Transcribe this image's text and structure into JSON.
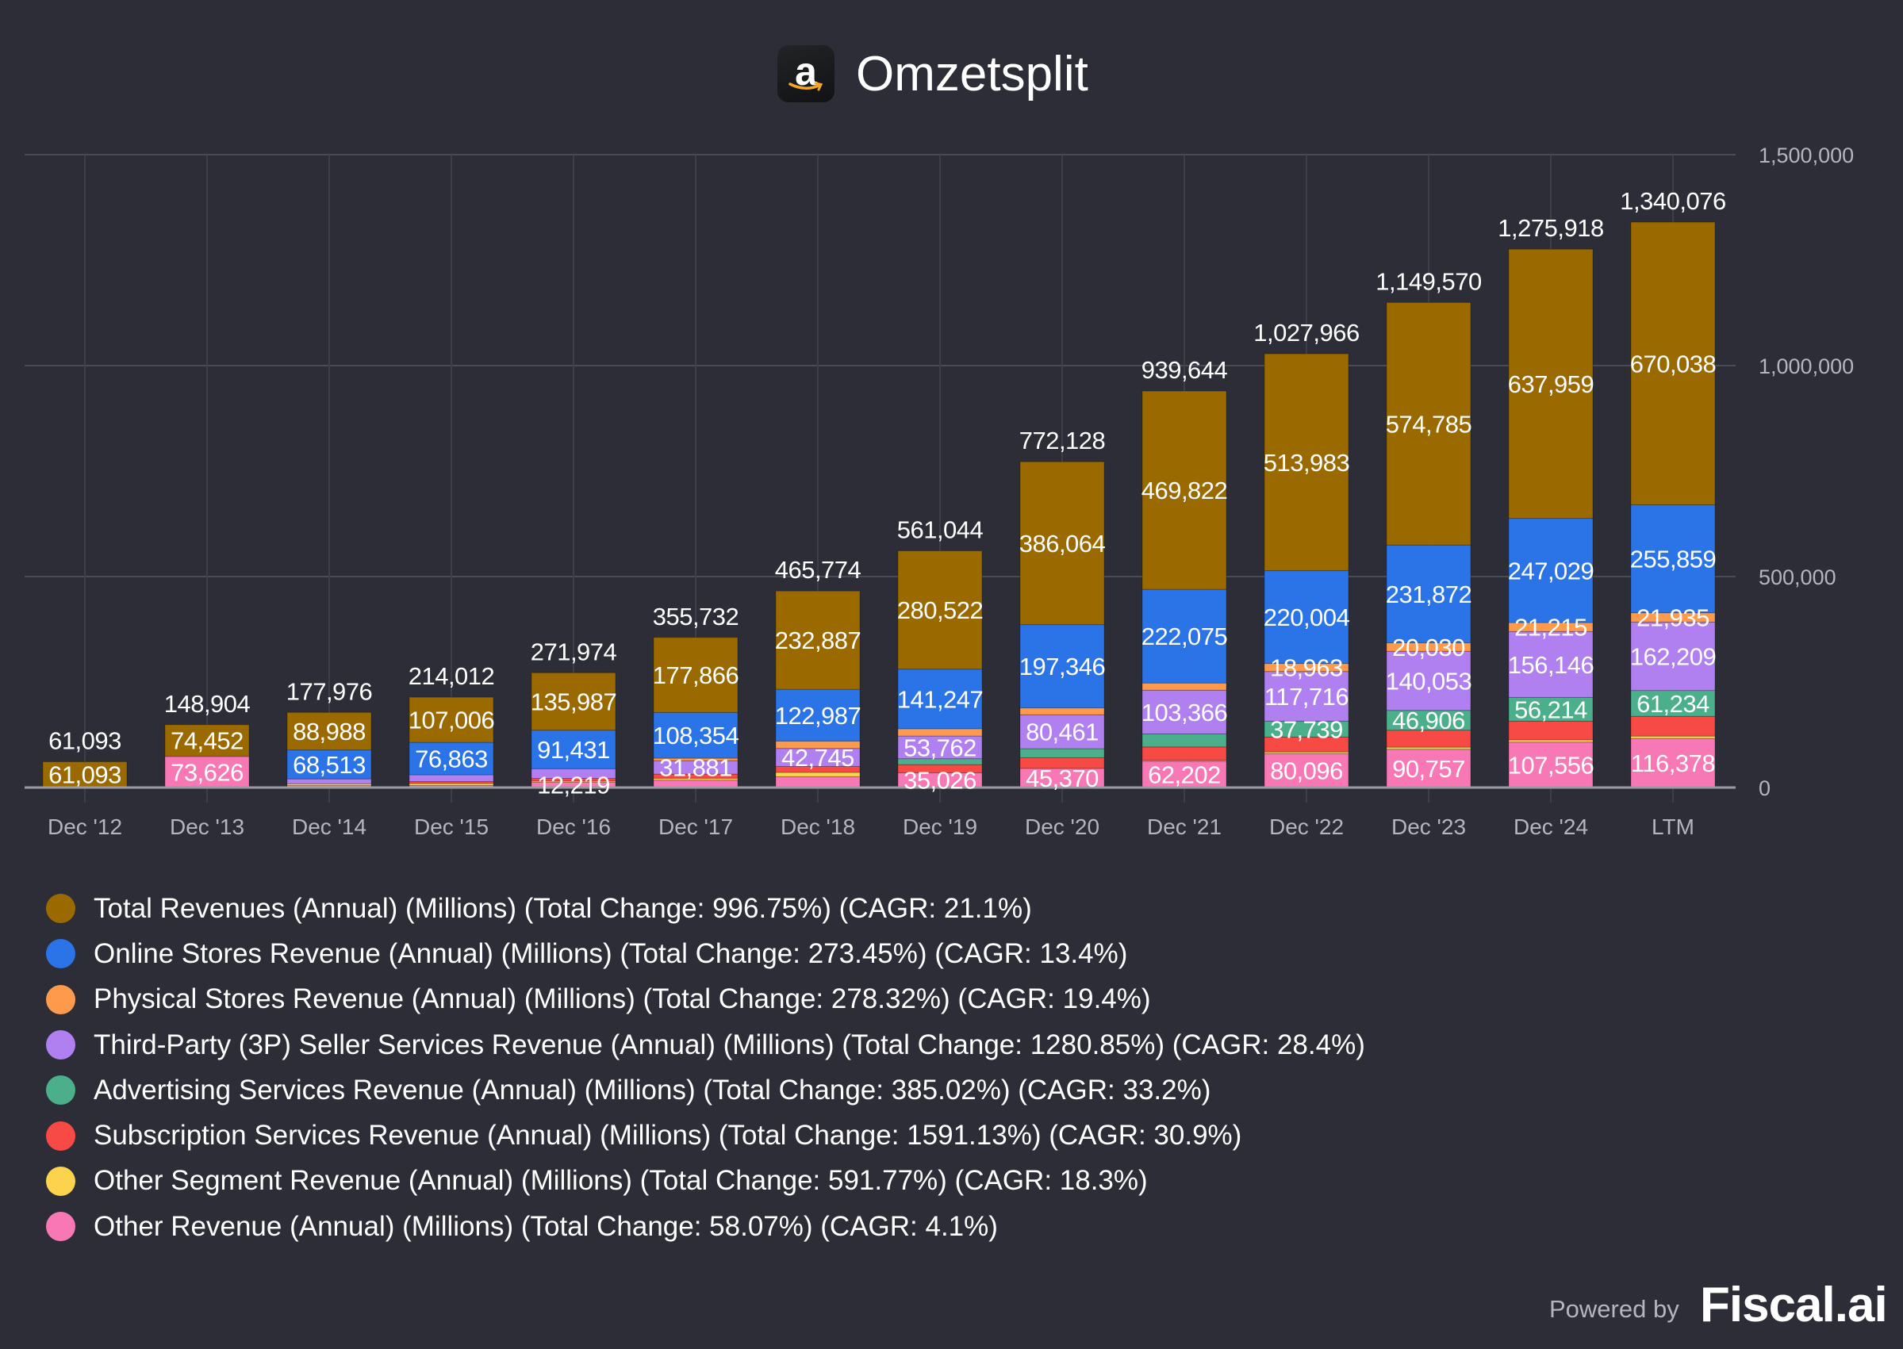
{
  "title": "Omzetsplit",
  "logo_letter": "a",
  "footer": {
    "powered_by": "Powered by",
    "brand": "Fiscal.ai"
  },
  "chart_data": {
    "type": "bar",
    "stacked": true,
    "title": "Omzetsplit",
    "categories": [
      "Dec '12",
      "Dec '13",
      "Dec '14",
      "Dec '15",
      "Dec '16",
      "Dec '17",
      "Dec '18",
      "Dec '19",
      "Dec '20",
      "Dec '21",
      "Dec '22",
      "Dec '23",
      "Dec '24",
      "LTM"
    ],
    "stack_totals": [
      61093,
      148904,
      177976,
      214012,
      271974,
      355732,
      465774,
      561044,
      772128,
      939644,
      1027966,
      1149570,
      1275918,
      1340076
    ],
    "y_ticks": [
      0,
      500000,
      1000000,
      1500000
    ],
    "y_tick_labels": [
      "0",
      "500,000",
      "1,000,000",
      "1,500,000"
    ],
    "ylim": [
      0,
      1500000
    ],
    "y_axis_side": "right",
    "grid": true,
    "legend_position": "bottom",
    "series": [
      {
        "name": "Other Revenue",
        "legend": "Other Revenue (Annual) (Millions) (Total Change: 58.07%) (CAGR: 4.1%)",
        "color": "#f778b4",
        "values": [
          null,
          73626,
          4728,
          5000,
          12219,
          17459,
          25655,
          35026,
          45370,
          62202,
          80096,
          90757,
          107556,
          116378
        ],
        "labeled": [
          false,
          true,
          false,
          false,
          true,
          false,
          false,
          true,
          true,
          true,
          true,
          true,
          true,
          true
        ]
      },
      {
        "name": "Other Segment Revenue",
        "legend": "Other Segment Revenue (Annual) (Millions) (Total Change: 591.77%) (CAGR: 18.3%)",
        "color": "#fcd34d",
        "values": [
          null,
          826,
          4000,
          4590,
          2950,
          4653,
          10108,
          null,
          null,
          2176,
          4247,
          4958,
          5425,
          5523
        ],
        "labeled": [
          false,
          false,
          false,
          false,
          false,
          false,
          false,
          false,
          false,
          false,
          false,
          false,
          false,
          false
        ]
      },
      {
        "name": "Subscription Services Revenue",
        "legend": "Subscription Services Revenue (Annual) (Millions) (Total Change: 1591.13%) (CAGR: 30.9%)",
        "color": "#f84a45",
        "values": [
          null,
          null,
          null,
          4467,
          6394,
          9721,
          14168,
          19210,
          25207,
          31768,
          35218,
          40209,
          44374,
          46900
        ],
        "labeled": [
          false,
          false,
          false,
          false,
          false,
          false,
          false,
          false,
          false,
          false,
          false,
          false,
          false,
          false
        ]
      },
      {
        "name": "Advertising Services Revenue",
        "legend": "Advertising Services Revenue (Annual) (Millions) (Total Change: 385.02%) (CAGR: 33.2%)",
        "color": "#4caf8c",
        "values": [
          null,
          null,
          null,
          null,
          null,
          null,
          null,
          14085,
          21453,
          31160,
          37739,
          46906,
          56214,
          61234
        ],
        "labeled": [
          false,
          false,
          false,
          false,
          false,
          false,
          false,
          false,
          false,
          false,
          true,
          true,
          true,
          true
        ]
      },
      {
        "name": "Third-Party (3P) Seller Services Revenue",
        "legend": "Third-Party (3P) Seller Services Revenue (Annual) (Millions) (Total Change: 1280.85%) (CAGR: 28.4%)",
        "color": "#b07ff0",
        "values": [
          null,
          null,
          11747,
          16086,
          22993,
          31881,
          42745,
          53762,
          80461,
          103366,
          117716,
          140053,
          156146,
          162209
        ],
        "labeled": [
          false,
          false,
          false,
          false,
          false,
          true,
          true,
          true,
          true,
          true,
          true,
          true,
          true,
          true
        ]
      },
      {
        "name": "Physical Stores Revenue",
        "legend": "Physical Stores Revenue (Annual) (Millions) (Total Change: 278.32%) (CAGR: 19.4%)",
        "color": "#fd9a4c",
        "values": [
          null,
          null,
          null,
          null,
          null,
          5798,
          17224,
          17192,
          16227,
          17075,
          18963,
          20030,
          21215,
          21935
        ],
        "labeled": [
          false,
          false,
          false,
          false,
          false,
          false,
          false,
          false,
          false,
          false,
          true,
          true,
          true,
          true
        ]
      },
      {
        "name": "Online Stores Revenue",
        "legend": "Online Stores Revenue (Annual) (Millions) (Total Change: 273.45%) (CAGR: 13.4%)",
        "color": "#2b74e8",
        "values": [
          null,
          null,
          68513,
          76863,
          91431,
          108354,
          122987,
          141247,
          197346,
          222075,
          220004,
          231872,
          247029,
          255859
        ],
        "labeled": [
          false,
          false,
          true,
          true,
          true,
          true,
          true,
          true,
          true,
          true,
          true,
          true,
          true,
          true
        ]
      },
      {
        "name": "Total Revenues",
        "legend": "Total Revenues (Annual) (Millions) (Total Change: 996.75%) (CAGR: 21.1%)",
        "color": "#9a6a00",
        "values": [
          61093,
          74452,
          88988,
          107006,
          135987,
          177866,
          232887,
          280522,
          386064,
          469822,
          513983,
          574785,
          637959,
          670038
        ],
        "labeled": [
          true,
          true,
          true,
          true,
          true,
          true,
          true,
          true,
          true,
          true,
          true,
          true,
          true,
          true
        ]
      }
    ],
    "legend_order": [
      7,
      6,
      5,
      4,
      3,
      2,
      1,
      0
    ]
  }
}
